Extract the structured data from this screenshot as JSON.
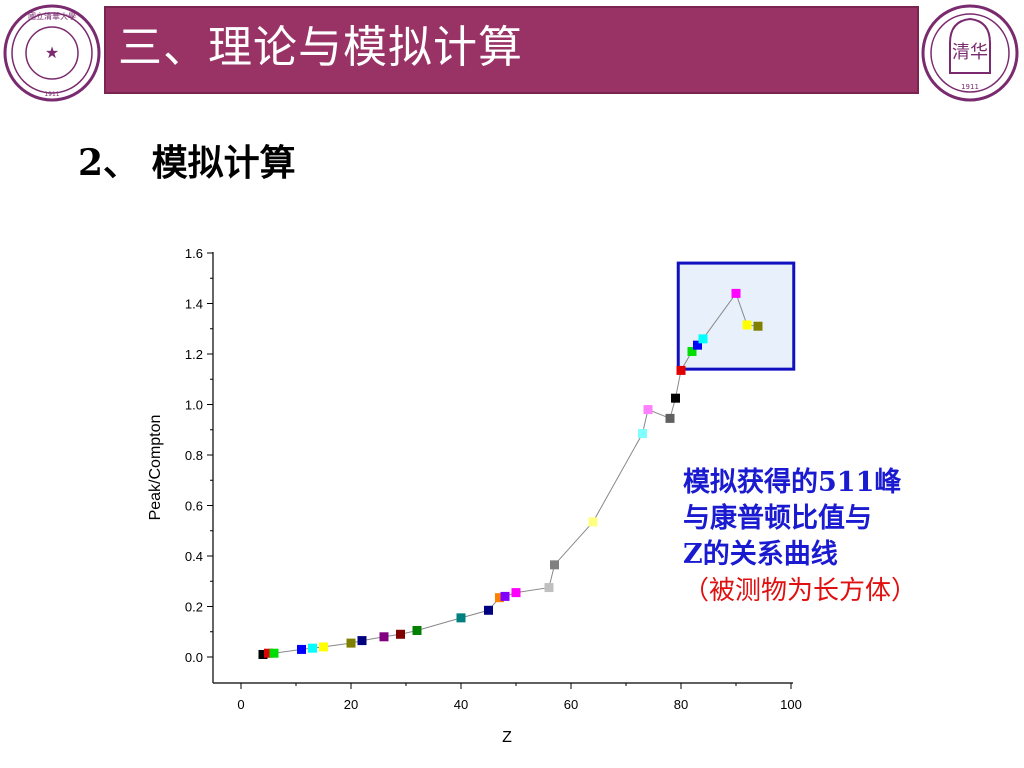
{
  "header": {
    "title": "三、理论与模拟计算",
    "bar_color": "#993366",
    "logo_left_text": "國立清華大學",
    "logo_left_ring": "TSINGHUA UNIVERSITY",
    "logo_left_year": "1911",
    "logo_right_text": "清华",
    "logo_right_ring": "TSINGHUA UNIVERSITY",
    "logo_right_year": "1911"
  },
  "subtitle": "2、 模拟计算",
  "annotation": {
    "line1": "模拟获得的511峰",
    "line2": "与康普顿比值与",
    "line3": "Z的关系曲线",
    "line4": "（被测物为长方体）"
  },
  "chart_data": {
    "type": "scatter",
    "xlabel": "Z",
    "ylabel": "Peak/Compton",
    "xlim": [
      -5,
      100
    ],
    "ylim": [
      -0.1,
      1.6
    ],
    "xticks": [
      0,
      20,
      40,
      60,
      80,
      100
    ],
    "yticks": [
      0.0,
      0.2,
      0.4,
      0.6,
      0.8,
      1.0,
      1.2,
      1.4,
      1.6
    ],
    "xtick_labels": [
      "0",
      "20",
      "40",
      "60",
      "80",
      "100"
    ],
    "ytick_labels": [
      "0.0",
      "0.2",
      "0.4",
      "0.6",
      "0.8",
      "1.0",
      "1.2",
      "1.4",
      "1.6"
    ],
    "connected": true,
    "line_color": "#888888",
    "points": [
      {
        "x": 4,
        "y": 0.01,
        "color": "#000000"
      },
      {
        "x": 5,
        "y": 0.015,
        "color": "#e00000"
      },
      {
        "x": 6,
        "y": 0.015,
        "color": "#00dd00"
      },
      {
        "x": 11,
        "y": 0.03,
        "color": "#0000ff"
      },
      {
        "x": 13,
        "y": 0.035,
        "color": "#00ffff"
      },
      {
        "x": 15,
        "y": 0.04,
        "color": "#ffff00"
      },
      {
        "x": 20,
        "y": 0.055,
        "color": "#808000"
      },
      {
        "x": 22,
        "y": 0.065,
        "color": "#000080"
      },
      {
        "x": 26,
        "y": 0.08,
        "color": "#800080"
      },
      {
        "x": 29,
        "y": 0.09,
        "color": "#800000"
      },
      {
        "x": 32,
        "y": 0.105,
        "color": "#008000"
      },
      {
        "x": 40,
        "y": 0.155,
        "color": "#008080"
      },
      {
        "x": 45,
        "y": 0.185,
        "color": "#000080"
      },
      {
        "x": 47,
        "y": 0.235,
        "color": "#ff8000"
      },
      {
        "x": 48,
        "y": 0.24,
        "color": "#8000ff"
      },
      {
        "x": 50,
        "y": 0.255,
        "color": "#ff00ff"
      },
      {
        "x": 56,
        "y": 0.275,
        "color": "#c0c0c0"
      },
      {
        "x": 57,
        "y": 0.365,
        "color": "#808080"
      },
      {
        "x": 64,
        "y": 0.535,
        "color": "#ffff80"
      },
      {
        "x": 73,
        "y": 0.885,
        "color": "#80ffff"
      },
      {
        "x": 74,
        "y": 0.98,
        "color": "#ff80ff"
      },
      {
        "x": 78,
        "y": 0.945,
        "color": "#606060"
      },
      {
        "x": 79,
        "y": 1.025,
        "color": "#000000"
      },
      {
        "x": 80,
        "y": 1.135,
        "color": "#e00000"
      },
      {
        "x": 82,
        "y": 1.21,
        "color": "#00dd00"
      },
      {
        "x": 83,
        "y": 1.235,
        "color": "#0000ff"
      },
      {
        "x": 84,
        "y": 1.26,
        "color": "#00ffff"
      },
      {
        "x": 90,
        "y": 1.44,
        "color": "#ff00ff"
      },
      {
        "x": 92,
        "y": 1.315,
        "color": "#ffff00"
      },
      {
        "x": 94,
        "y": 1.31,
        "color": "#808000"
      }
    ],
    "highlight_box": {
      "x0": 79.5,
      "x1": 100.5,
      "y0": 1.14,
      "y1": 1.56,
      "stroke": "#1010c0",
      "fill": "#e8f0fc"
    }
  }
}
